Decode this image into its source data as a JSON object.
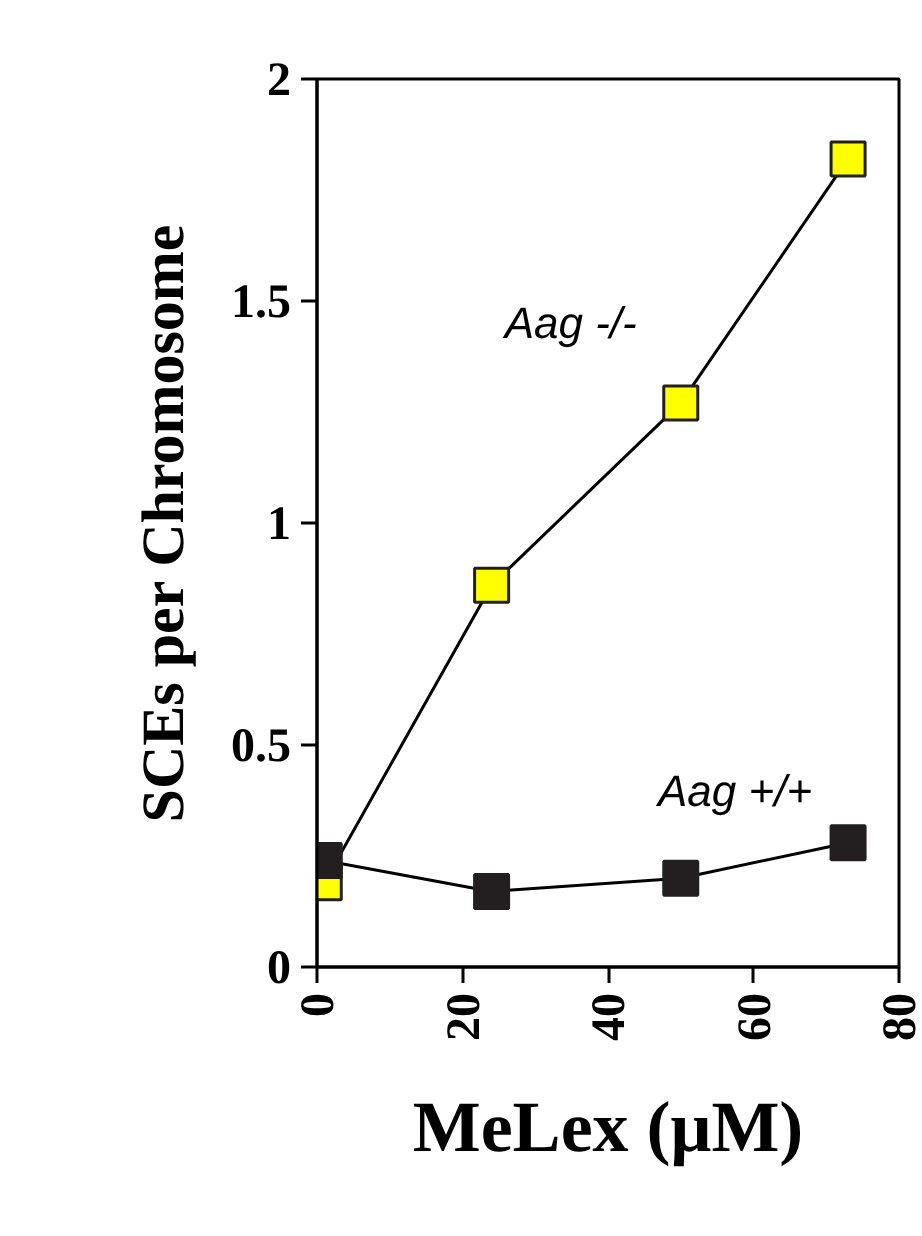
{
  "chart_data": {
    "type": "line",
    "xlabel": "MeLex (μM)",
    "ylabel": "SCEs per Chromosome",
    "x": [
      1,
      24,
      50,
      73
    ],
    "series": [
      {
        "name": "Aag -/-",
        "color": "#ffff00",
        "values": [
          0.19,
          0.86,
          1.27,
          1.82
        ]
      },
      {
        "name": "Aag +/+",
        "color": "#231f20",
        "values": [
          0.24,
          0.17,
          0.2,
          0.28
        ]
      }
    ],
    "xlim": [
      0,
      80
    ],
    "ylim": [
      0,
      2
    ],
    "xticks": [
      0,
      20,
      40,
      60,
      80
    ],
    "yticks": [
      0,
      0.5,
      1,
      1.5,
      2
    ],
    "marker": "square",
    "line_style": "solid",
    "grid": false
  }
}
